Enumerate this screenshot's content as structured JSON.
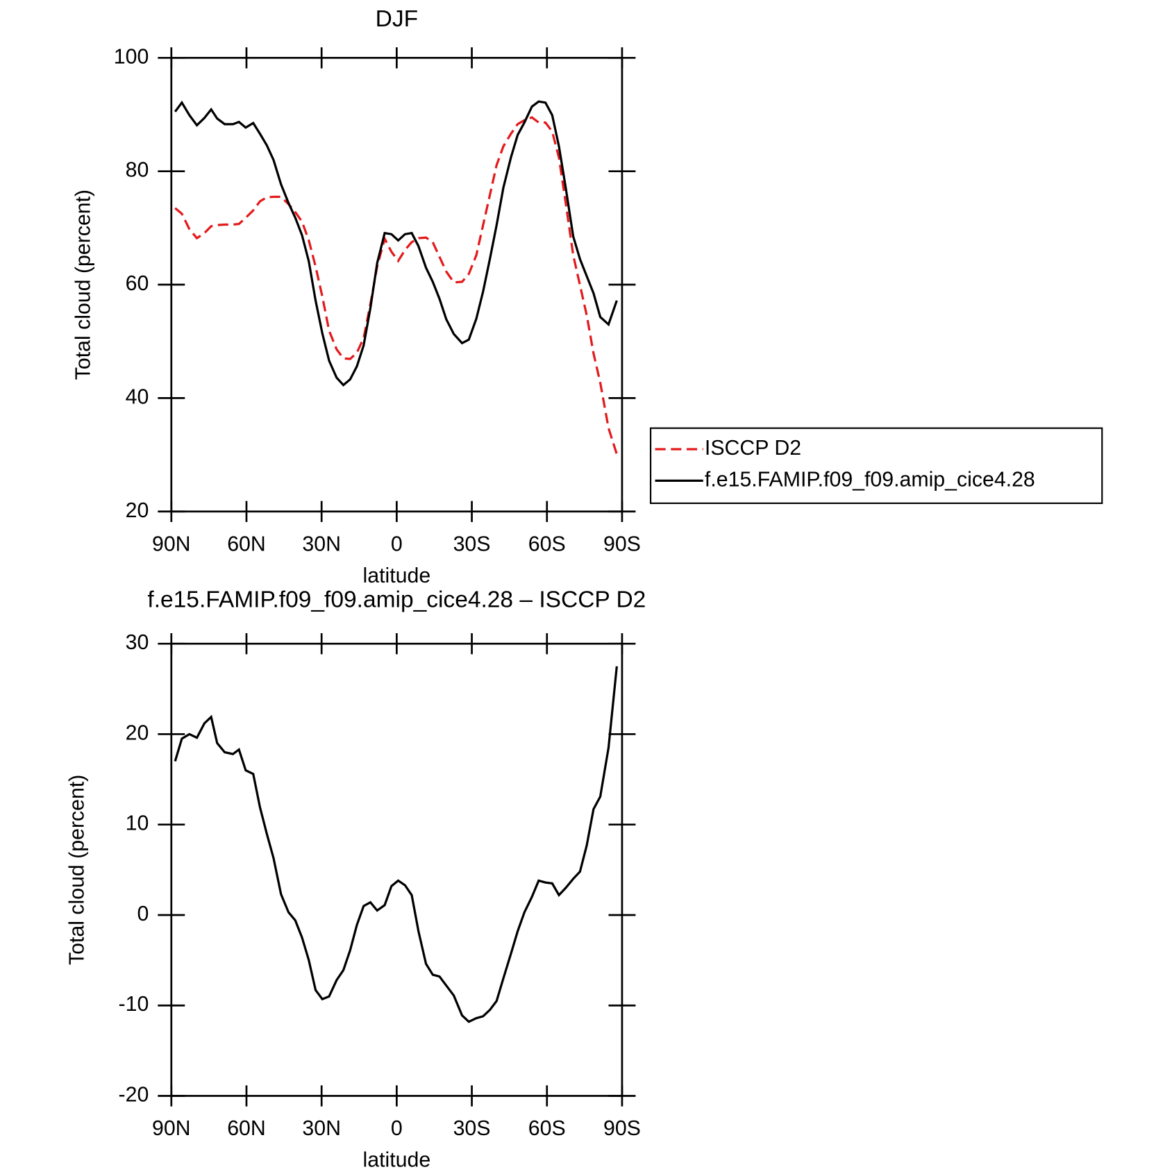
{
  "chart_data": [
    {
      "type": "line",
      "title": "DJF",
      "xlabel": "latitude",
      "ylabel": "Total cloud (percent)",
      "x": [
        88.5,
        85.8,
        82.8,
        79.8,
        76.8,
        74.1,
        71.7,
        68.7,
        65.4,
        63,
        60.3,
        57.3,
        54.6,
        51.9,
        49.2,
        46.2,
        43.2,
        40.5,
        37.8,
        35.1,
        32.4,
        29.7,
        27,
        24,
        21.3,
        18.6,
        15.9,
        13.2,
        10.5,
        7.8,
        4.8,
        2.1,
        -0.6,
        -3.3,
        -6,
        -8.7,
        -11.7,
        -14.4,
        -17.1,
        -19.8,
        -22.8,
        -26.1,
        -28.8,
        -31.8,
        -34.5,
        -37.2,
        -39.9,
        -42.6,
        -45.6,
        -48.3,
        -51,
        -54,
        -56.7,
        -59.4,
        -62.1,
        -64.8,
        -67.5,
        -70.5,
        -73.2,
        -75.9,
        -78.6,
        -81.3,
        -84.6,
        -87.9
      ],
      "series": [
        {
          "name": "ISCCP D2",
          "color": "#e31a1c",
          "line_style": "dashed",
          "values": [
            73.5,
            72.5,
            69.8,
            68.2,
            69.1,
            70.3,
            70.5,
            70.6,
            70.6,
            70.7,
            71.8,
            73.1,
            74.7,
            75.4,
            75.5,
            75.5,
            74.2,
            72.8,
            71.1,
            67.8,
            63.2,
            57.9,
            51.9,
            48.6,
            47.0,
            46.9,
            48.0,
            50.6,
            56.6,
            63.2,
            68.1,
            65.8,
            64.2,
            66.1,
            67.5,
            68.2,
            68.3,
            67.5,
            64.9,
            62.3,
            60.4,
            60.5,
            61.9,
            65.2,
            70.5,
            75.8,
            81.1,
            84.4,
            86.6,
            88.3,
            89.0,
            89.5,
            88.6,
            88.6,
            87.0,
            82.4,
            74.4,
            65.2,
            59.9,
            54.6,
            47.9,
            42.7,
            34.7,
            30.1
          ]
        },
        {
          "name": "f.e15.FAMIP.f09_f09.amip_cice4.28",
          "color": "#000000",
          "line_style": "solid",
          "values": [
            90.5,
            92.1,
            89.9,
            88.1,
            89.4,
            90.9,
            89.3,
            88.3,
            88.3,
            88.7,
            87.7,
            88.5,
            86.6,
            84.6,
            82.0,
            77.7,
            74.4,
            71.8,
            68.7,
            64.1,
            57.2,
            51.4,
            46.6,
            43.6,
            42.3,
            43.3,
            45.6,
            49.3,
            55.9,
            63.8,
            69.1,
            68.9,
            67.8,
            68.9,
            69.1,
            66.8,
            63.0,
            60.5,
            57.5,
            53.9,
            51.3,
            49.7,
            50.3,
            54.0,
            58.8,
            64.5,
            70.5,
            77.1,
            82.4,
            86.4,
            88.6,
            91.4,
            92.3,
            92.1,
            89.9,
            84.4,
            77.1,
            68.5,
            64.5,
            61.5,
            58.5,
            54.3,
            53.0,
            57.2
          ]
        }
      ],
      "xlim": [
        90,
        -90
      ],
      "xticks": [
        {
          "value": 90,
          "label": "90N"
        },
        {
          "value": 60,
          "label": "60N"
        },
        {
          "value": 30,
          "label": "30N"
        },
        0,
        {
          "value": -30,
          "label": "30S"
        },
        {
          "value": -60,
          "label": "60S"
        },
        {
          "value": -90,
          "label": "90S"
        }
      ],
      "ylim": [
        20,
        100
      ],
      "yticks": [
        20,
        40,
        60,
        80,
        100
      ],
      "grid": false,
      "legend": "right"
    },
    {
      "type": "line",
      "title": "f.e15.FAMIP.f09_f09.amip_cice4.28 – ISCCP D2",
      "xlabel": "latitude",
      "ylabel": "Total cloud (percent)",
      "x": [
        88.5,
        85.8,
        82.8,
        79.8,
        76.8,
        74.1,
        71.7,
        68.7,
        65.4,
        63,
        60.3,
        57.3,
        54.6,
        51.9,
        49.2,
        46.2,
        43.2,
        40.5,
        37.8,
        35.1,
        32.4,
        29.7,
        27,
        24,
        21.3,
        18.6,
        15.9,
        13.2,
        10.5,
        7.8,
        4.8,
        2.1,
        -0.6,
        -3.3,
        -6,
        -8.7,
        -11.7,
        -14.4,
        -17.1,
        -19.8,
        -22.8,
        -26.1,
        -28.8,
        -31.8,
        -34.5,
        -37.2,
        -39.9,
        -42.6,
        -45.6,
        -48.3,
        -51,
        -54,
        -56.7,
        -59.4,
        -62.1,
        -64.8,
        -67.5,
        -70.5,
        -73.2,
        -75.9,
        -78.6,
        -81.3,
        -84.6,
        -87.9
      ],
      "series": [
        {
          "color": "#000000",
          "line_style": "solid",
          "values": [
            17.0,
            19.5,
            20.0,
            19.6,
            21.2,
            21.9,
            19.0,
            18.0,
            17.8,
            18.3,
            16.0,
            15.6,
            11.9,
            9.0,
            6.3,
            2.3,
            0.3,
            -0.6,
            -2.5,
            -5.0,
            -8.3,
            -9.3,
            -9.0,
            -7.2,
            -6.1,
            -3.9,
            -1.1,
            1.0,
            1.4,
            0.5,
            1.1,
            3.2,
            3.8,
            3.3,
            2.2,
            -1.8,
            -5.4,
            -6.6,
            -6.8,
            -7.8,
            -8.9,
            -11.1,
            -11.8,
            -11.4,
            -11.2,
            -10.5,
            -9.5,
            -7.0,
            -4.3,
            -1.8,
            0.3,
            2.0,
            3.8,
            3.6,
            3.5,
            2.2,
            3.0,
            4.0,
            4.8,
            7.7,
            11.7,
            13.1,
            18.5,
            27.5
          ]
        }
      ],
      "xlim": [
        90,
        -90
      ],
      "xticks": [
        {
          "value": 90,
          "label": "90N"
        },
        {
          "value": 60,
          "label": "60N"
        },
        {
          "value": 30,
          "label": "30N"
        },
        0,
        {
          "value": -30,
          "label": "30S"
        },
        {
          "value": -60,
          "label": "60S"
        },
        {
          "value": -90,
          "label": "90S"
        }
      ],
      "ylim": [
        -20,
        30
      ],
      "yticks": [
        -20,
        -10,
        0,
        10,
        20,
        30
      ],
      "grid": false
    }
  ]
}
